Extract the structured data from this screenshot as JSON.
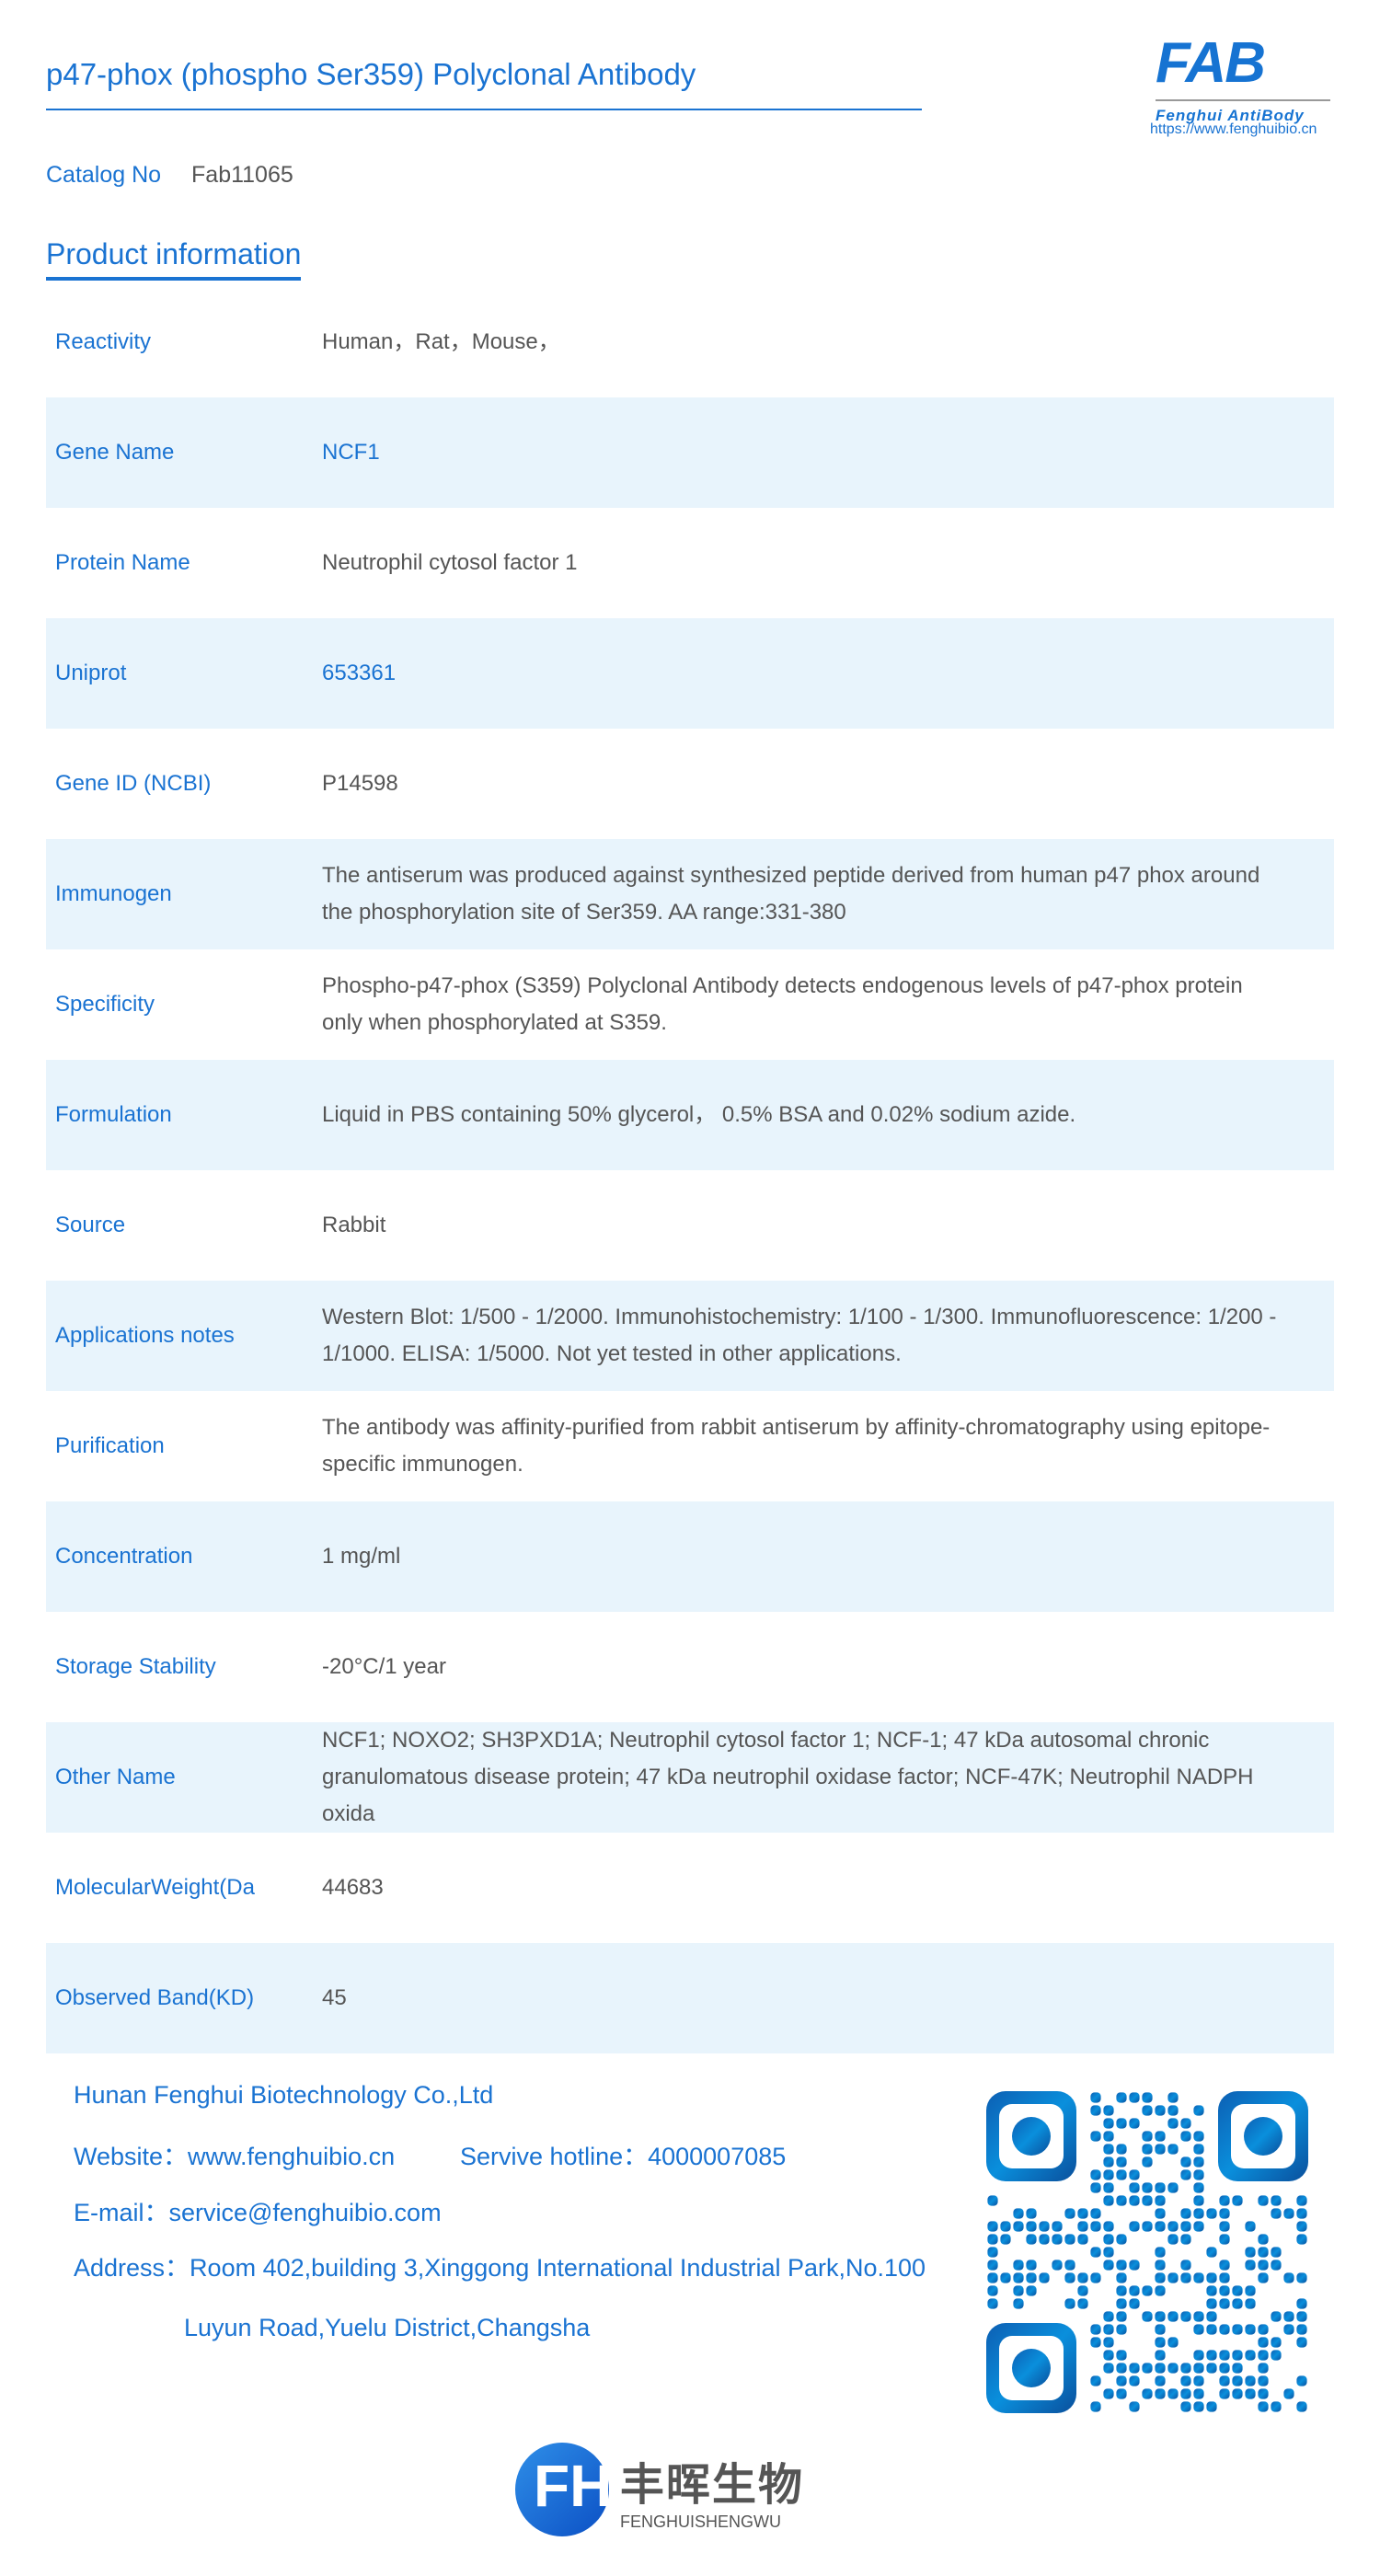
{
  "header": {
    "title": "p47-phox (phospho Ser359) Polyclonal Antibody",
    "logo_text": "FAB",
    "logo_sub": "Fenghui AntiBody",
    "url": "https://www.fenghuibio.cn"
  },
  "catalog": {
    "label": "Catalog No",
    "value": "Fab11065"
  },
  "section_title": "Product information",
  "rows": [
    {
      "k": "Reactivity",
      "v": "Human，Rat，Mouse，"
    },
    {
      "k": "Gene Name",
      "v": "NCF1"
    },
    {
      "k": "Protein Name",
      "v": "Neutrophil cytosol factor 1"
    },
    {
      "k": "Uniprot",
      "v": "653361"
    },
    {
      "k": "Gene ID (NCBI)",
      "v": "P14598"
    },
    {
      "k": "Immunogen",
      "v": "The antiserum was produced against synthesized peptide derived from human p47 phox around the phosphorylation site of Ser359. AA range:331-380"
    },
    {
      "k": "Specificity",
      "v": "Phospho-p47-phox (S359) Polyclonal Antibody detects endogenous levels of p47-phox protein only when phosphorylated at S359."
    },
    {
      "k": "Formulation",
      "v": "Liquid in PBS containing 50% glycerol， 0.5% BSA and 0.02% sodium azide."
    },
    {
      "k": "Source",
      "v": "Rabbit"
    },
    {
      "k": "Applications notes",
      "v": "Western Blot: 1/500 - 1/2000. Immunohistochemistry: 1/100 - 1/300. Immunofluorescence: 1/200 - 1/1000. ELISA: 1/5000. Not yet tested in other applications."
    },
    {
      "k": "Purification",
      "v": "The antibody was affinity-purified from rabbit antiserum by affinity-chromatography using epitope-specific immunogen."
    },
    {
      "k": "Concentration",
      "v": "1 mg/ml"
    },
    {
      "k": "Storage Stability",
      "v": "-20°C/1 year"
    },
    {
      "k": "Other Name",
      "v": "NCF1; NOXO2; SH3PXD1A; Neutrophil cytosol factor 1; NCF-1; 47 kDa autosomal chronic granulomatous disease protein; 47 kDa neutrophil oxidase factor; NCF-47K; Neutrophil NADPH oxida"
    },
    {
      "k": "MolecularWeight(Da",
      "v": "44683"
    },
    {
      "k": "Observed Band(KD)",
      "v": "45"
    }
  ],
  "footer": {
    "company": "Hunan Fenghui Biotechnology Co.,Ltd",
    "website": "Website：www.fenghuibio.cn",
    "hotline": "Servive hotline：4000007085",
    "email": "E-mail：service@fenghuibio.com",
    "address1": "Address：Room 402,building 3,Xinggong International Industrial Park,No.100",
    "address2": "Luyun Road,Yuelu District,Changsha"
  },
  "bottom_logo": {
    "mark": "FH",
    "cn": "丰晖生物",
    "pinyin": "FENGHUISHENGWU"
  },
  "colors": {
    "accent": "#1a73d2",
    "row_stripe": "#e8f4fc",
    "text": "#555555"
  }
}
